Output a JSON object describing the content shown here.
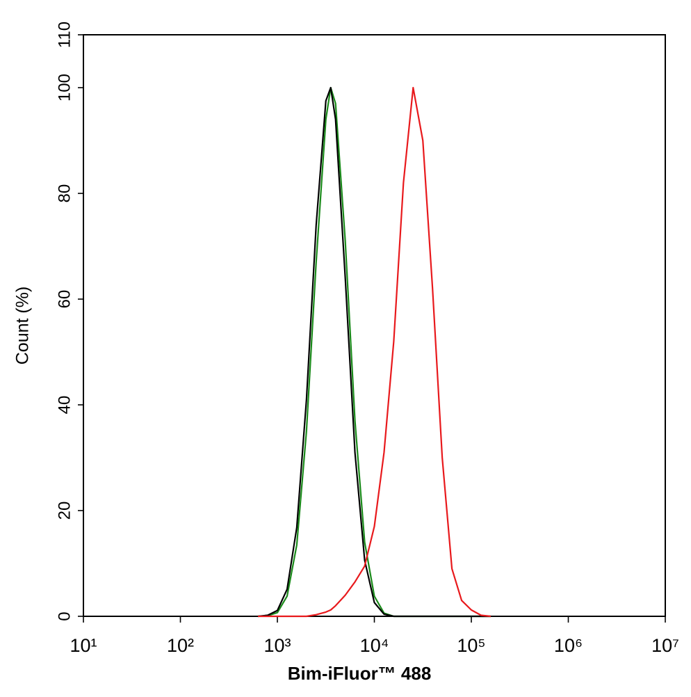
{
  "chart_data": {
    "type": "line",
    "xlabel": "Bim-iFluor™ 488",
    "ylabel": "Count  (%)",
    "xscale": "log",
    "x": [
      631,
      794,
      1000,
      1259,
      1585,
      1995,
      2512,
      3162,
      3548,
      3981,
      5012,
      6310,
      7943,
      10000,
      12589,
      15849,
      19953,
      25119,
      31623,
      39811,
      50119,
      63096,
      79433,
      100000,
      125893,
      158489
    ],
    "series": [
      {
        "color": "#1a8a1a",
        "values": [
          0,
          0.1,
          0.7,
          3.8,
          13.5,
          35,
          67,
          94,
          100,
          97,
          71,
          37,
          14,
          3.8,
          0.6,
          0,
          0,
          0,
          0,
          0,
          0,
          0,
          0,
          0,
          0,
          0
        ]
      },
      {
        "color": "#000000",
        "values": [
          0,
          0.2,
          1.1,
          5.1,
          16.8,
          41,
          74,
          97.5,
          100,
          94,
          64,
          31,
          10.6,
          2.6,
          0.4,
          0,
          0,
          0,
          0,
          0,
          0,
          0,
          0,
          0,
          0,
          0
        ]
      },
      {
        "color": "#e8191c",
        "values": [
          0,
          0,
          0,
          0,
          0,
          0,
          0.3,
          0.8,
          1.2,
          2,
          4,
          6.5,
          9.5,
          17,
          31,
          52,
          82,
          100,
          90,
          62,
          30,
          9,
          3,
          1.2,
          0.2,
          0
        ]
      }
    ],
    "xlim": [
      10,
      10000000
    ],
    "xticks": [
      {
        "value": 10,
        "label": "10¹"
      },
      {
        "value": 100,
        "label": "10²"
      },
      {
        "value": 1000,
        "label": "10³"
      },
      {
        "value": 10000,
        "label": "10⁴"
      },
      {
        "value": 100000,
        "label": "10⁵"
      },
      {
        "value": 1000000,
        "label": "10⁶"
      },
      {
        "value": 10000000,
        "label": "10⁷"
      }
    ],
    "ylim": [
      0,
      110
    ],
    "yticks": [
      0,
      20,
      40,
      60,
      80,
      100,
      110
    ],
    "grid": false
  }
}
